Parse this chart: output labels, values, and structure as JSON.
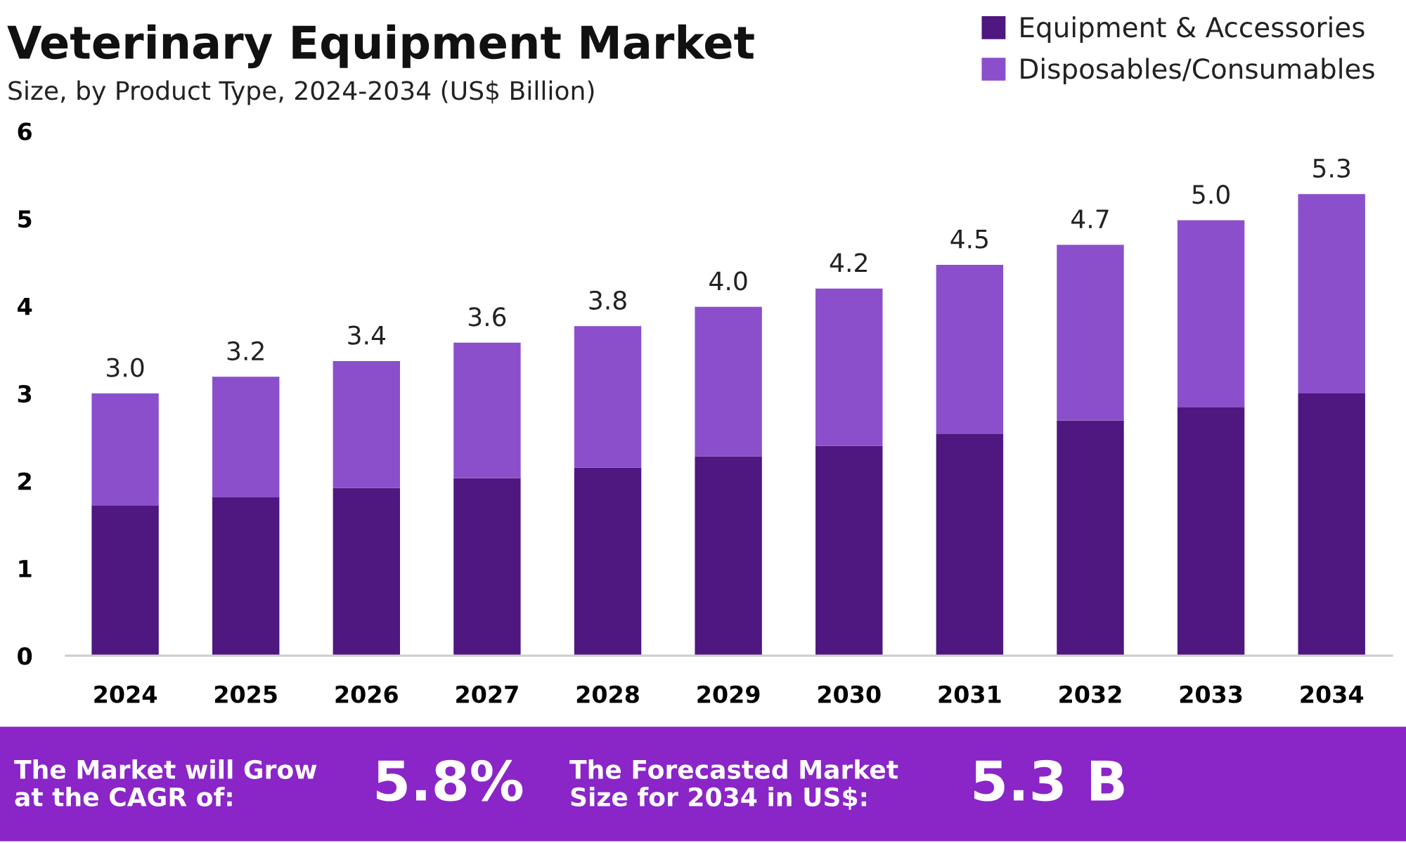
{
  "chart_data": {
    "type": "bar",
    "title": "Veterinary Equipment Market",
    "subtitle": "Size, by Product Type, 2024-2034 (US$ Billion)",
    "categories": [
      "2024",
      "2025",
      "2026",
      "2027",
      "2028",
      "2029",
      "2030",
      "2031",
      "2032",
      "2033",
      "2034"
    ],
    "series": [
      {
        "name": "Equipment & Accessories",
        "color": "#4f1780",
        "values": [
          1.72,
          1.81,
          1.92,
          2.03,
          2.15,
          2.28,
          2.4,
          2.54,
          2.69,
          2.84,
          3.0
        ]
      },
      {
        "name": "Disposables/Consumables",
        "color": "#8b4fcb",
        "values": [
          1.28,
          1.38,
          1.45,
          1.55,
          1.62,
          1.71,
          1.8,
          1.93,
          2.01,
          2.14,
          2.28
        ]
      }
    ],
    "stacked": true,
    "ylim": [
      0,
      6
    ],
    "yticks": [
      0,
      1,
      2,
      3,
      4,
      5,
      6
    ],
    "grid": false,
    "legend": "top right",
    "totals": [
      "3.0",
      "3.2",
      "3.4",
      "3.6",
      "3.8",
      "4.0",
      "4.2",
      "4.5",
      "4.7",
      "5.0",
      "5.3"
    ],
    "annotations": [
      "The Market will Grow\nat the CAGR of:",
      "5.8%",
      "The Forecasted Market\nSize for 2034 in US$:",
      "5.3 B"
    ]
  }
}
